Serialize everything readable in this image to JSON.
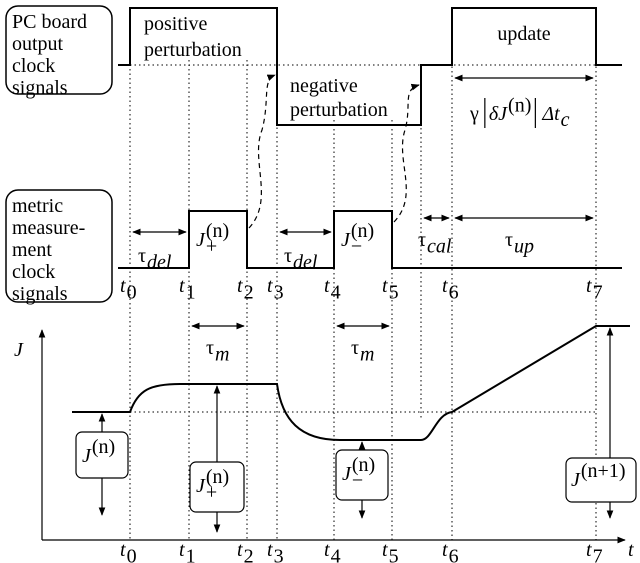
{
  "left_labels": [
    [
      "PC board",
      "output",
      "clock",
      "signals"
    ],
    [
      "metric",
      "measure-",
      "ment",
      "clock",
      "signals"
    ]
  ],
  "phases": {
    "positive": [
      "positive",
      "perturbation"
    ],
    "negative": [
      "negative",
      "perturbation"
    ],
    "update": "update"
  },
  "update_time": {
    "gamma": "γ",
    "delta_j": {
      "base": "δJ",
      "sup": "(n)"
    },
    "delta_t": {
      "base": "Δt",
      "sub": "c"
    }
  },
  "intervals": [
    {
      "base": "τ",
      "sub": "del"
    },
    {
      "base": "τ",
      "sub": "del"
    },
    {
      "base": "τ",
      "sub": "cal"
    },
    {
      "base": "τ",
      "sub": "up"
    }
  ],
  "measurements": [
    {
      "base": "J",
      "sup": "(n)",
      "sub": "+"
    },
    {
      "base": "J",
      "sup": "(n)",
      "sub": "−"
    }
  ],
  "measurement_times": [
    {
      "base": "t",
      "sub": "0"
    },
    {
      "base": "t",
      "sub": "1"
    },
    {
      "base": "t",
      "sub": "2"
    },
    {
      "base": "t",
      "sub": "3"
    },
    {
      "base": "t",
      "sub": "4"
    },
    {
      "base": "t",
      "sub": "5"
    },
    {
      "base": "t",
      "sub": "6"
    },
    {
      "base": "t",
      "sub": "7"
    }
  ],
  "tau_m": [
    {
      "base": "τ",
      "sub": "m"
    },
    {
      "base": "τ",
      "sub": "m"
    }
  ],
  "plot": {
    "y_axis": "J",
    "x_axis": "t",
    "times": [
      {
        "base": "t",
        "sub": "0"
      },
      {
        "base": "t",
        "sub": "1"
      },
      {
        "base": "t",
        "sub": "2"
      },
      {
        "base": "t",
        "sub": "3"
      },
      {
        "base": "t",
        "sub": "4"
      },
      {
        "base": "t",
        "sub": "5"
      },
      {
        "base": "t",
        "sub": "6"
      },
      {
        "base": "t",
        "sub": "7"
      }
    ],
    "metric_values": [
      {
        "base": "J",
        "sup": "(n)"
      },
      {
        "base": "J",
        "sup": "(n)",
        "sub": "+"
      },
      {
        "base": "J",
        "sup": "(n)",
        "sub": "−"
      },
      {
        "base": "J",
        "sup": "(n+1)"
      }
    ]
  }
}
